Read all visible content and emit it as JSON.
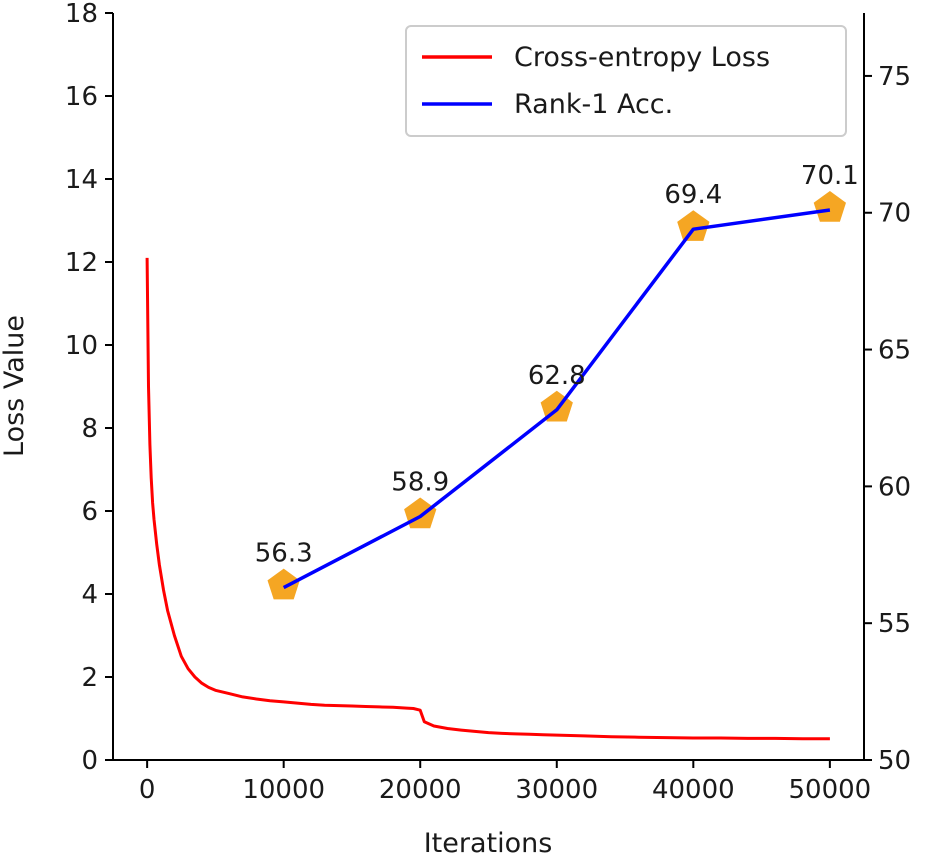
{
  "chart_data": {
    "type": "line",
    "title": "",
    "xlabel": "Iterations",
    "ylabel": "Loss Value",
    "y2label": "",
    "xlim": [
      -2500,
      52500
    ],
    "ylim": [
      0,
      18
    ],
    "y2lim": [
      50,
      77.3
    ],
    "xticks": [
      0,
      10000,
      20000,
      30000,
      40000,
      50000
    ],
    "yticks": [
      0,
      2,
      4,
      6,
      8,
      10,
      12,
      14,
      16,
      18
    ],
    "y2ticks": [
      50,
      55,
      60,
      65,
      70,
      75
    ],
    "legend_position": "upper-right",
    "series": [
      {
        "name": "Cross-entropy Loss",
        "axis": "left",
        "color": "#ff0000",
        "x": [
          0,
          100,
          200,
          300,
          400,
          500,
          700,
          900,
          1200,
          1500,
          2000,
          2500,
          3000,
          3500,
          4000,
          4500,
          5000,
          6000,
          7000,
          8000,
          9000,
          10000,
          11000,
          12000,
          13000,
          14000,
          15000,
          16000,
          17000,
          18000,
          19000,
          19500,
          20000,
          20300,
          21000,
          22000,
          23000,
          24000,
          25000,
          26000,
          27000,
          28000,
          29000,
          30000,
          32000,
          34000,
          36000,
          38000,
          40000,
          42000,
          44000,
          46000,
          48000,
          50000
        ],
        "y": [
          12.1,
          9.0,
          7.6,
          6.8,
          6.2,
          5.8,
          5.2,
          4.7,
          4.1,
          3.6,
          3.0,
          2.5,
          2.2,
          2.0,
          1.85,
          1.75,
          1.68,
          1.6,
          1.52,
          1.47,
          1.43,
          1.4,
          1.37,
          1.34,
          1.32,
          1.31,
          1.3,
          1.29,
          1.28,
          1.27,
          1.25,
          1.24,
          1.2,
          0.92,
          0.82,
          0.76,
          0.72,
          0.69,
          0.66,
          0.64,
          0.63,
          0.62,
          0.61,
          0.6,
          0.58,
          0.56,
          0.55,
          0.54,
          0.53,
          0.53,
          0.52,
          0.52,
          0.51,
          0.51
        ]
      },
      {
        "name": "Rank-1 Acc.",
        "axis": "right",
        "color": "#0000ff",
        "marker_color": "#f5a623",
        "marker": "pentagon",
        "x": [
          10000,
          20000,
          30000,
          40000,
          50000
        ],
        "y": [
          56.3,
          58.9,
          62.8,
          69.4,
          70.1
        ],
        "labels": [
          "56.3",
          "58.9",
          "62.8",
          "69.4",
          "70.1"
        ]
      }
    ]
  }
}
